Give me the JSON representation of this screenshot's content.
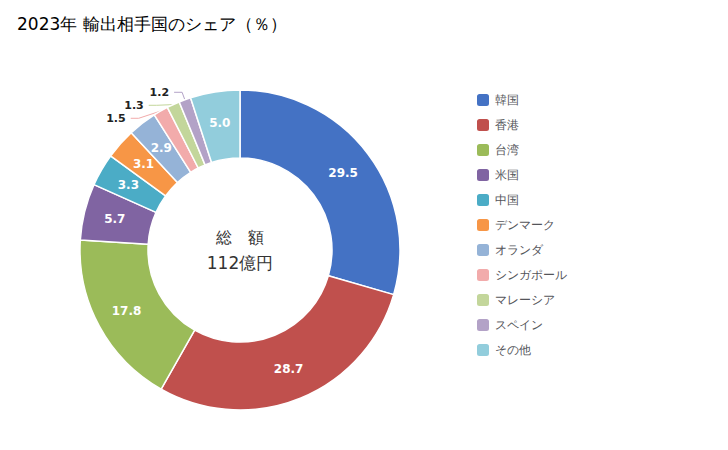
{
  "chart_data": {
    "type": "pie",
    "title": "2023年 輸出相手国のシェア（％）",
    "annotations": [
      "総　額",
      "112億円"
    ],
    "categories": [
      "韓国",
      "香港",
      "台湾",
      "米国",
      "中国",
      "デンマーク",
      "オランダ",
      "シンガポール",
      "マレーシア",
      "スペイン",
      "その他"
    ],
    "values": [
      29.5,
      28.7,
      17.8,
      5.7,
      3.3,
      3.1,
      2.9,
      1.5,
      1.3,
      1.2,
      5.0
    ],
    "value_labels": [
      "29.5",
      "28.7",
      "17.8",
      "5.7",
      "3.3",
      "3.1",
      "2.9",
      "1.5",
      "1.3",
      "1.2",
      "5.0"
    ],
    "colors": [
      "#4472C4",
      "#C0504D",
      "#9BBB59",
      "#8064A2",
      "#4BACC6",
      "#F79646",
      "#95B3D7",
      "#F2ABAB",
      "#C3D69B",
      "#B3A2C7",
      "#92CDDC"
    ],
    "data_labels": true,
    "legend": "right"
  }
}
